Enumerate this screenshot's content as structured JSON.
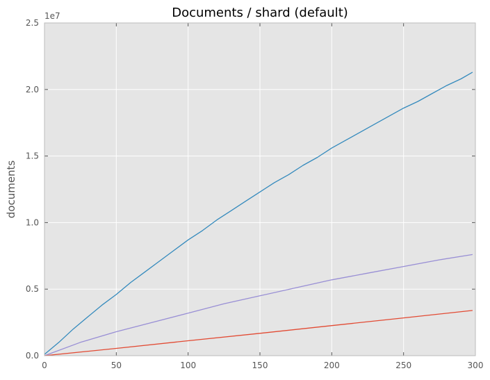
{
  "chart_data": {
    "type": "line",
    "title": "Documents / shard (default)",
    "xlabel": "",
    "ylabel": "documents",
    "y_offset_label": "1e7",
    "xlim": [
      0,
      300
    ],
    "ylim": [
      0,
      2.5
    ],
    "y_scale_factor": 10000000,
    "x_ticks": [
      0,
      50,
      100,
      150,
      200,
      250,
      300
    ],
    "x_tick_labels": [
      "0",
      "50",
      "100",
      "150",
      "200",
      "250",
      "300"
    ],
    "y_ticks": [
      0,
      0.5,
      1.0,
      1.5,
      2.0,
      2.5
    ],
    "y_tick_labels": [
      "0.0",
      "0.5",
      "1.0",
      "1.5",
      "2.0",
      "2.5"
    ],
    "grid": true,
    "legend": "none",
    "background_color": "#e5e5e5",
    "grid_color": "#ffffff",
    "series": [
      {
        "color": "#348abd",
        "x": [
          0,
          10,
          20,
          30,
          40,
          50,
          60,
          70,
          80,
          90,
          100,
          110,
          120,
          130,
          140,
          150,
          160,
          170,
          180,
          190,
          200,
          210,
          220,
          230,
          240,
          250,
          260,
          270,
          280,
          290,
          298
        ],
        "y": [
          0.01,
          0.1,
          0.2,
          0.29,
          0.38,
          0.46,
          0.55,
          0.63,
          0.71,
          0.79,
          0.87,
          0.94,
          1.02,
          1.09,
          1.16,
          1.23,
          1.3,
          1.36,
          1.43,
          1.49,
          1.56,
          1.62,
          1.68,
          1.74,
          1.8,
          1.86,
          1.91,
          1.97,
          2.03,
          2.08,
          2.13
        ]
      },
      {
        "color": "#988ed5",
        "x": [
          0,
          25,
          50,
          75,
          100,
          125,
          150,
          175,
          200,
          225,
          250,
          275,
          298
        ],
        "y": [
          0.0,
          0.1,
          0.18,
          0.25,
          0.32,
          0.39,
          0.45,
          0.51,
          0.57,
          0.62,
          0.67,
          0.72,
          0.76
        ]
      },
      {
        "color": "#e24a33",
        "x": [
          0,
          50,
          100,
          150,
          200,
          250,
          298
        ],
        "y": [
          0.0,
          0.055,
          0.112,
          0.168,
          0.226,
          0.284,
          0.34
        ]
      }
    ]
  }
}
